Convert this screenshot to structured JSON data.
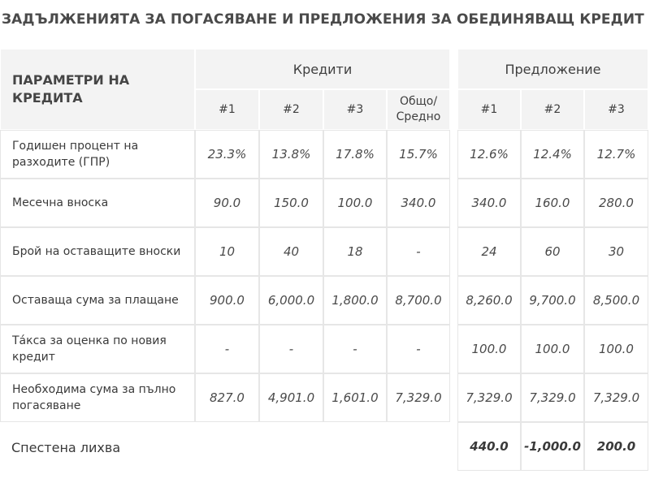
{
  "title": "ЗАДЪЛЖЕНИЯТА ЗА ПОГАСЯВАНЕ И ПРЕДЛОЖЕНИЯ ЗА ОБЕДИНЯВАЩ КРЕДИТ",
  "table": {
    "param_header": "ПАРАМЕТРИ НА КРЕДИТА",
    "credits_header": "Кредити",
    "offer_header": "Предложение",
    "credit_columns": [
      "#1",
      "#2",
      "#3",
      "Общо/ Средно"
    ],
    "offer_columns": [
      "#1",
      "#2",
      "#3"
    ],
    "rows": [
      {
        "label": "Годишен процент на разходите (ГПР)",
        "credits": [
          "23.3%",
          "13.8%",
          "17.8%",
          "15.7%"
        ],
        "offers": [
          "12.6%",
          "12.4%",
          "12.7%"
        ]
      },
      {
        "label": "Месечна вноска",
        "credits": [
          "90.0",
          "150.0",
          "100.0",
          "340.0"
        ],
        "offers": [
          "340.0",
          "160.0",
          "280.0"
        ]
      },
      {
        "label": "Брой на оставащите вноски",
        "credits": [
          "10",
          "40",
          "18",
          "-"
        ],
        "offers": [
          "24",
          "60",
          "30"
        ]
      },
      {
        "label": "Оставаща сума за плащане",
        "credits": [
          "900.0",
          "6,000.0",
          "1,800.0",
          "8,700.0"
        ],
        "offers": [
          "8,260.0",
          "9,700.0",
          "8,500.0"
        ]
      },
      {
        "label": "Тáкса за оценка по новия кредит",
        "credits": [
          "-",
          "-",
          "-",
          "-"
        ],
        "offers": [
          "100.0",
          "100.0",
          "100.0"
        ]
      },
      {
        "label": "Необходима сума за пълно погасяване",
        "credits": [
          "827.0",
          "4,901.0",
          "1,601.0",
          "7,329.0"
        ],
        "offers": [
          "7,329.0",
          "7,329.0",
          "7,329.0"
        ]
      }
    ],
    "savings": {
      "label": "Спестена лихва",
      "offers": [
        "440.0",
        "-1,000.0",
        "200.0"
      ]
    }
  }
}
